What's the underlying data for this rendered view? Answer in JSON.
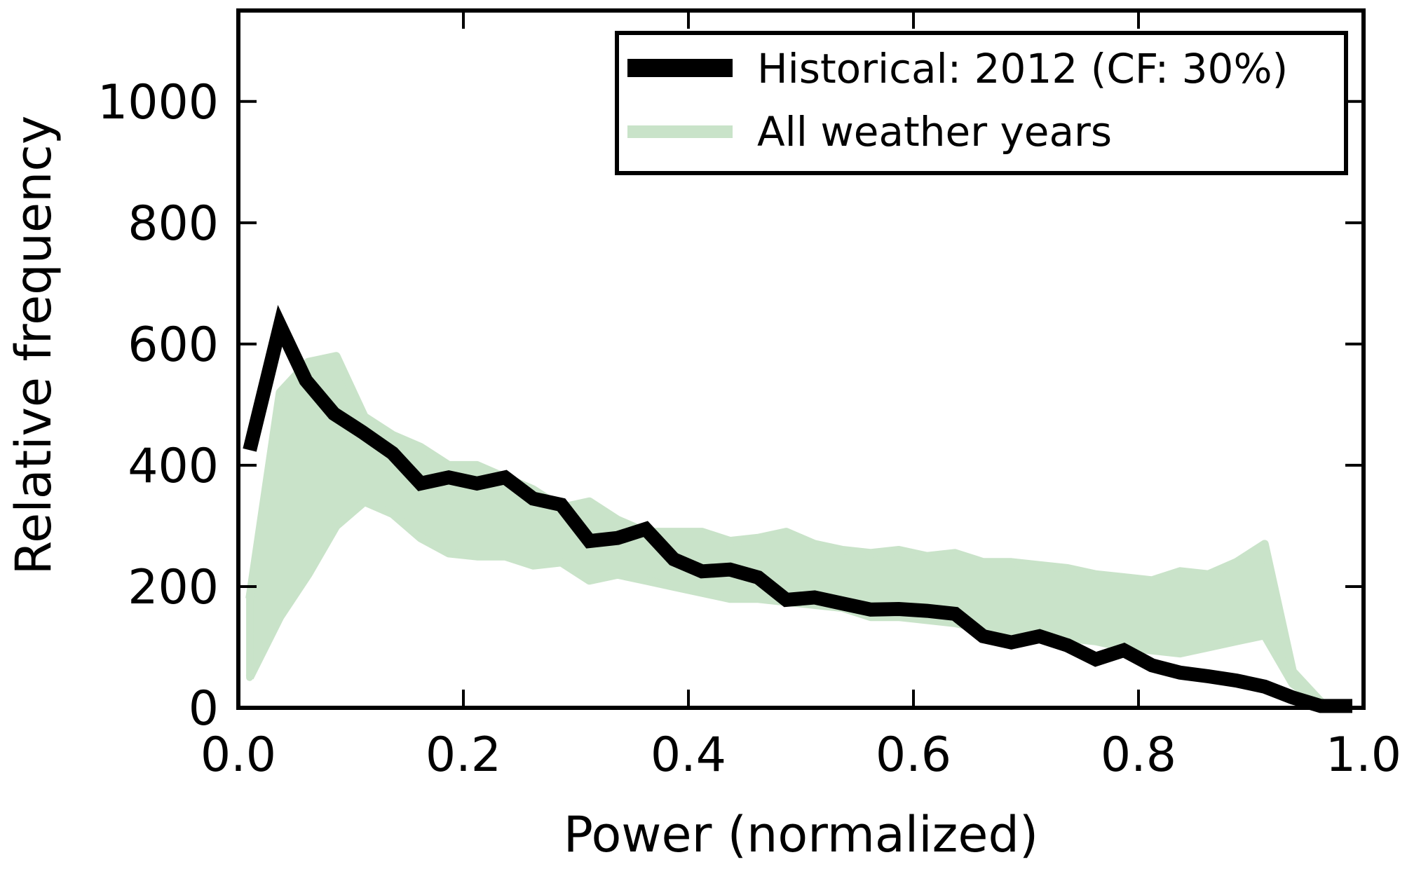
{
  "chart_data": {
    "type": "line",
    "xlabel": "Power (normalized)",
    "ylabel": "Relative frequency",
    "xlim": [
      0.0,
      1.0
    ],
    "ylim": [
      0,
      1150
    ],
    "xticks": [
      "0.0",
      "0.2",
      "0.4",
      "0.6",
      "0.8",
      "1.0"
    ],
    "yticks": [
      "0",
      "200",
      "400",
      "600",
      "800",
      "1000"
    ],
    "legend_position": "top-right",
    "grid": false,
    "colors": {
      "historical": "#000000",
      "weather_years": "#c9e3c9"
    },
    "series": [
      {
        "name": "Historical: 2012 (CF: 30%)",
        "x": [
          0.01,
          0.037,
          0.06,
          0.085,
          0.11,
          0.137,
          0.162,
          0.187,
          0.212,
          0.237,
          0.262,
          0.287,
          0.312,
          0.337,
          0.362,
          0.387,
          0.412,
          0.437,
          0.462,
          0.487,
          0.512,
          0.537,
          0.562,
          0.587,
          0.612,
          0.637,
          0.662,
          0.687,
          0.712,
          0.737,
          0.762,
          0.787,
          0.812,
          0.837,
          0.862,
          0.887,
          0.912,
          0.937,
          0.962,
          0.99
        ],
        "y": [
          425,
          630,
          540,
          485,
          455,
          420,
          370,
          380,
          370,
          380,
          345,
          335,
          275,
          280,
          295,
          245,
          225,
          228,
          215,
          178,
          182,
          172,
          162,
          163,
          160,
          155,
          118,
          108,
          118,
          103,
          80,
          95,
          70,
          58,
          52,
          45,
          35,
          17,
          3,
          3
        ]
      },
      {
        "name": "All weather years",
        "x": [
          0.01,
          0.037,
          0.062,
          0.087,
          0.112,
          0.137,
          0.162,
          0.187,
          0.212,
          0.237,
          0.262,
          0.287,
          0.312,
          0.337,
          0.362,
          0.387,
          0.412,
          0.437,
          0.462,
          0.487,
          0.512,
          0.537,
          0.562,
          0.587,
          0.612,
          0.637,
          0.662,
          0.687,
          0.712,
          0.737,
          0.762,
          0.787,
          0.812,
          0.837,
          0.862,
          0.887,
          0.912,
          0.937,
          0.962
        ],
        "y_low": [
          50,
          150,
          220,
          300,
          340,
          320,
          280,
          255,
          250,
          250,
          235,
          240,
          210,
          220,
          210,
          200,
          190,
          180,
          180,
          175,
          170,
          165,
          150,
          150,
          145,
          140,
          130,
          125,
          120,
          115,
          110,
          100,
          95,
          90,
          100,
          110,
          120,
          40,
          5
        ],
        "y_high": [
          180,
          520,
          570,
          580,
          480,
          450,
          430,
          400,
          400,
          380,
          360,
          330,
          340,
          310,
          290,
          290,
          290,
          275,
          280,
          290,
          270,
          260,
          255,
          260,
          250,
          255,
          240,
          240,
          235,
          230,
          220,
          215,
          210,
          225,
          220,
          240,
          270,
          60,
          10
        ]
      }
    ]
  }
}
